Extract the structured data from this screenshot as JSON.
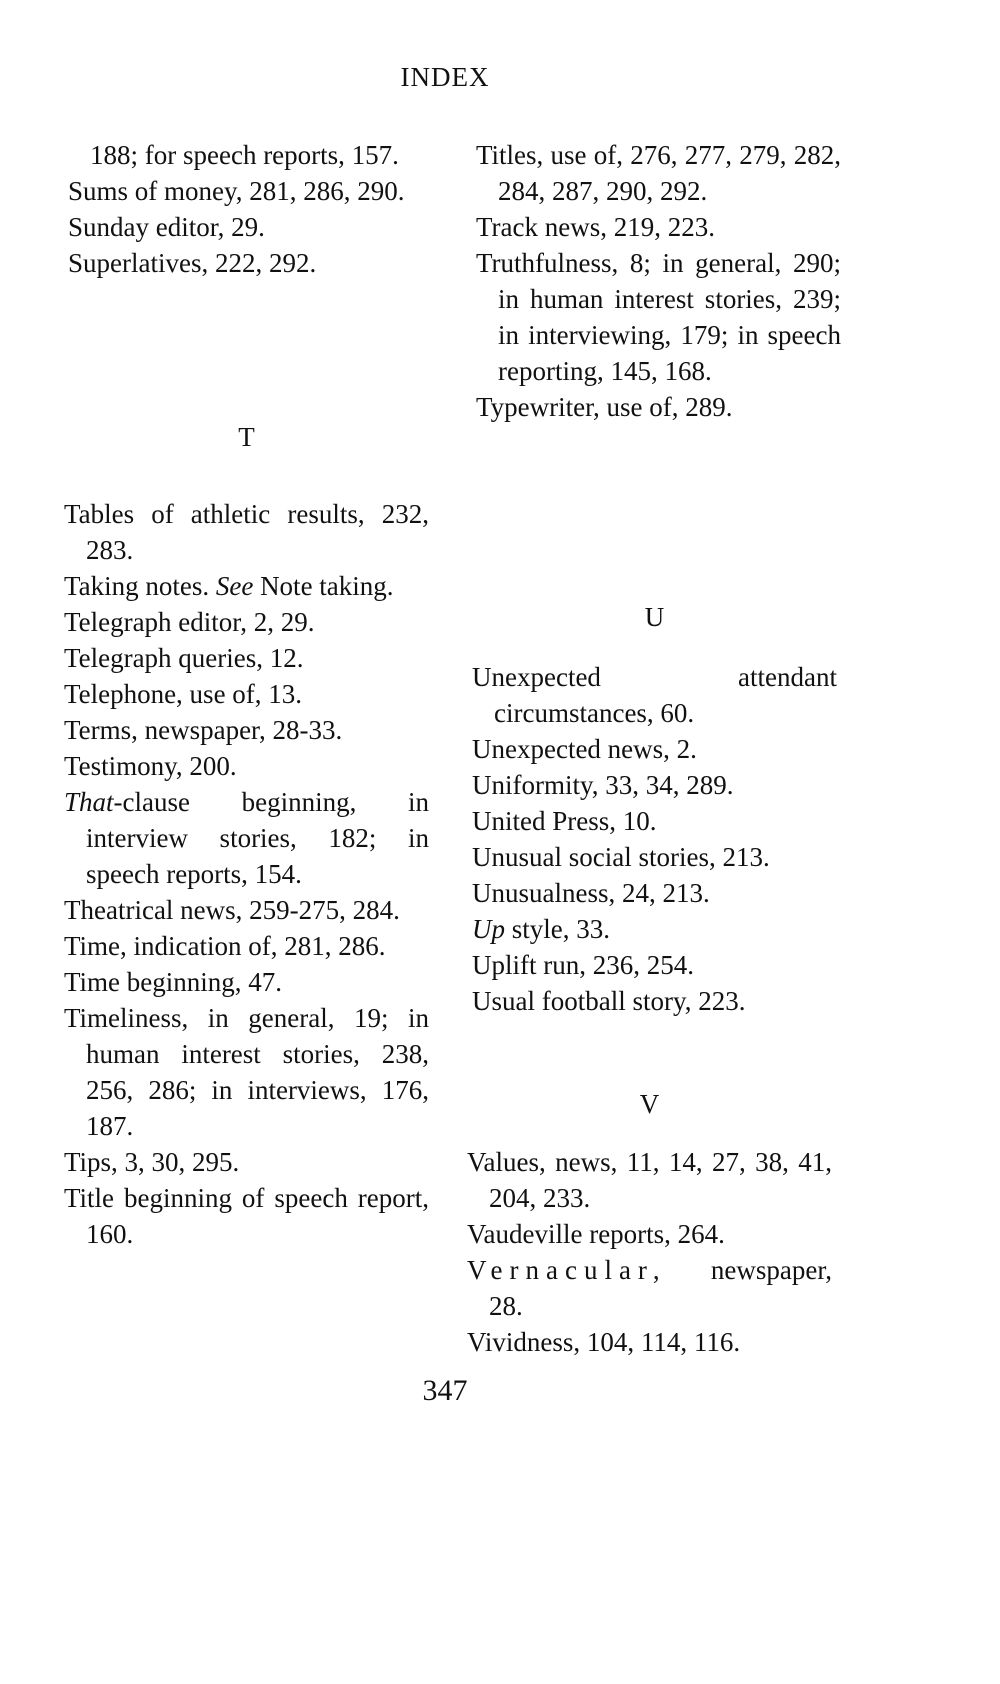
{
  "header": {
    "title": "INDEX"
  },
  "page_number": "347",
  "sections": [
    {
      "id": "s-cont",
      "letter": "",
      "entries": [
        {
          "cont": true,
          "parts": [
            {
              "t": "188; for speech reports, 157."
            }
          ]
        },
        {
          "parts": [
            {
              "t": "Sums of money, 281, 286, 290."
            }
          ]
        },
        {
          "parts": [
            {
              "t": "Sunday editor, 29."
            }
          ]
        },
        {
          "parts": [
            {
              "t": "Superlatives, 222, 292."
            }
          ]
        }
      ]
    },
    {
      "id": "s-t",
      "letter": "T",
      "entries": [
        {
          "parts": [
            {
              "t": "Tables of athletic results, 232, 283."
            }
          ]
        },
        {
          "parts": [
            {
              "t": "Taking notes. "
            },
            {
              "t": "See",
              "i": true
            },
            {
              "t": " Note taking."
            }
          ]
        },
        {
          "parts": [
            {
              "t": "Telegraph editor, 2, 29."
            }
          ]
        },
        {
          "parts": [
            {
              "t": "Telegraph queries, 12."
            }
          ]
        },
        {
          "parts": [
            {
              "t": "Telephone, use of, 13."
            }
          ]
        },
        {
          "parts": [
            {
              "t": "Terms, newspaper, 28-33."
            }
          ]
        },
        {
          "parts": [
            {
              "t": "Testimony, 200."
            }
          ]
        },
        {
          "parts": [
            {
              "t": "That",
              "i": true
            },
            {
              "t": "-clause beginning, in interview stories, 182; in speech reports, 154."
            }
          ]
        },
        {
          "parts": [
            {
              "t": "Theatrical news, 259-275, 284."
            }
          ]
        },
        {
          "parts": [
            {
              "t": "Time, indication of, 281, 286."
            }
          ]
        },
        {
          "parts": [
            {
              "t": "Time beginning, 47."
            }
          ]
        },
        {
          "parts": [
            {
              "t": "Timeliness, in general, 19; in human interest stories, 238, 256, 286; in interviews, 176, 187."
            }
          ]
        },
        {
          "parts": [
            {
              "t": "Tips, 3, 30, 295."
            }
          ]
        },
        {
          "parts": [
            {
              "t": "Title beginning of speech report, 160."
            }
          ]
        }
      ]
    },
    {
      "id": "s-t2",
      "letter": "",
      "entries": [
        {
          "parts": [
            {
              "t": "Titles, use of, 276, 277, 279, 282, 284, 287, 290, 292."
            }
          ]
        },
        {
          "parts": [
            {
              "t": "Track news, 219, 223."
            }
          ]
        },
        {
          "parts": [
            {
              "t": "Truthfulness, 8; in general, 290; in human interest stories, 239; in interviewing, 179; in speech reporting, 145, 168."
            }
          ]
        },
        {
          "parts": [
            {
              "t": "Typewriter, use of, 289."
            }
          ]
        }
      ]
    },
    {
      "id": "s-u",
      "letter": "U",
      "entries": [
        {
          "parts": [
            {
              "t": "Unexpected attendant circumstances, 60."
            }
          ]
        },
        {
          "parts": [
            {
              "t": "Unexpected news, 2."
            }
          ]
        },
        {
          "parts": [
            {
              "t": "Uniformity, 33, 34, 289."
            }
          ]
        },
        {
          "parts": [
            {
              "t": "United Press, 10."
            }
          ]
        },
        {
          "parts": [
            {
              "t": "Unusual social stories, 213."
            }
          ]
        },
        {
          "parts": [
            {
              "t": "Unusualness, 24, 213."
            }
          ]
        },
        {
          "parts": [
            {
              "t": "Up",
              "i": true
            },
            {
              "t": " style, 33."
            }
          ]
        },
        {
          "parts": [
            {
              "t": "Uplift run, 236, 254."
            }
          ]
        },
        {
          "parts": [
            {
              "t": "Usual football story, 223."
            }
          ]
        }
      ]
    },
    {
      "id": "s-v",
      "letter": "V",
      "entries": [
        {
          "parts": [
            {
              "t": "Values, news, 11, 14, 27, 38, 41, 204, 233."
            }
          ]
        },
        {
          "parts": [
            {
              "t": "Vaudeville reports, 264."
            }
          ]
        },
        {
          "parts": [
            {
              "t": "Vernacular,",
              "sp": true
            },
            {
              "t": " newspaper, 28."
            }
          ]
        },
        {
          "parts": [
            {
              "t": "Vividness, 104, 114, 116."
            }
          ]
        }
      ]
    }
  ]
}
